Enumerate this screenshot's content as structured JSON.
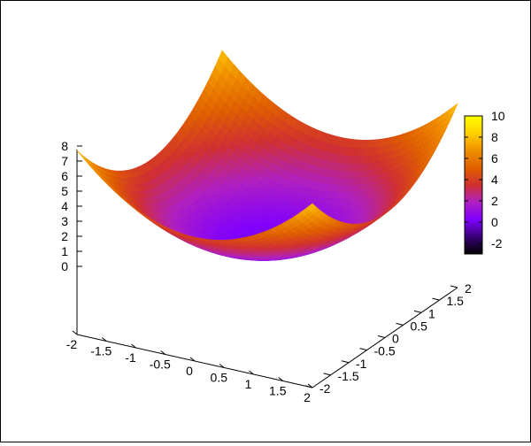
{
  "chart_data": {
    "type": "surface",
    "function": "z = x^2 + y^2",
    "x": [
      -2,
      -1.5,
      -1,
      -0.5,
      0,
      0.5,
      1,
      1.5,
      2
    ],
    "y": [
      -2,
      -1.5,
      -1,
      -0.5,
      0,
      0.5,
      1,
      1.5,
      2
    ],
    "xlim": [
      -2,
      2
    ],
    "ylim": [
      -2,
      2
    ],
    "zlim": [
      0,
      8
    ],
    "x_ticks": [
      "-2",
      "-1.5",
      "-1",
      "-0.5",
      "0",
      "0.5",
      "1",
      "1.5",
      "2"
    ],
    "y_ticks": [
      "-2",
      "-1.5",
      "-1",
      "-0.5",
      "0",
      "0.5",
      "1",
      "1.5",
      "2"
    ],
    "z_ticks": [
      "0",
      "1",
      "2",
      "3",
      "4",
      "5",
      "6",
      "7",
      "8"
    ],
    "colorbar": {
      "range": [
        -3,
        10
      ],
      "ticks": [
        "-2",
        "0",
        "2",
        "4",
        "6",
        "8",
        "10"
      ],
      "palette": [
        "#000000",
        "#3a0078",
        "#8000ff",
        "#b020c0",
        "#d03030",
        "#e06000",
        "#f09000",
        "#ffd000",
        "#ffff00"
      ]
    },
    "grid": false,
    "legend": "none"
  }
}
